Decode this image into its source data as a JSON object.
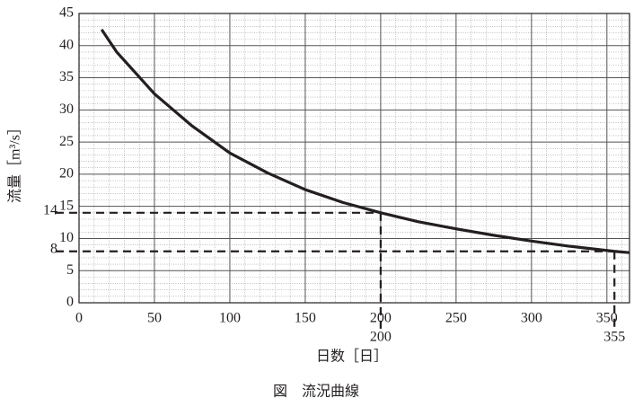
{
  "chart_data": {
    "type": "line",
    "title": "図　流況曲線",
    "xlabel": "日数［日］",
    "ylabel": "流量［m³/s］",
    "x": [
      15,
      25,
      50,
      75,
      100,
      125,
      150,
      175,
      200,
      225,
      250,
      275,
      300,
      325,
      355,
      365
    ],
    "series": [
      {
        "color": "#231f20",
        "values": [
          42.5,
          39,
          32.5,
          27.5,
          23.3,
          20.2,
          17.6,
          15.6,
          14,
          12.6,
          11.5,
          10.5,
          9.6,
          8.8,
          8,
          7.8
        ]
      }
    ],
    "xlim": [
      0,
      365
    ],
    "ylim": [
      0,
      45
    ],
    "xticks": [
      0,
      50,
      100,
      150,
      200,
      250,
      300,
      350
    ],
    "yticks": [
      0,
      5,
      10,
      15,
      20,
      25,
      30,
      35,
      40,
      45
    ],
    "grid": true,
    "minor_grid": {
      "x": 10,
      "y": 1
    },
    "annotations": [
      {
        "x": 200,
        "y": 14
      },
      {
        "x": 355,
        "y": 8
      }
    ]
  }
}
